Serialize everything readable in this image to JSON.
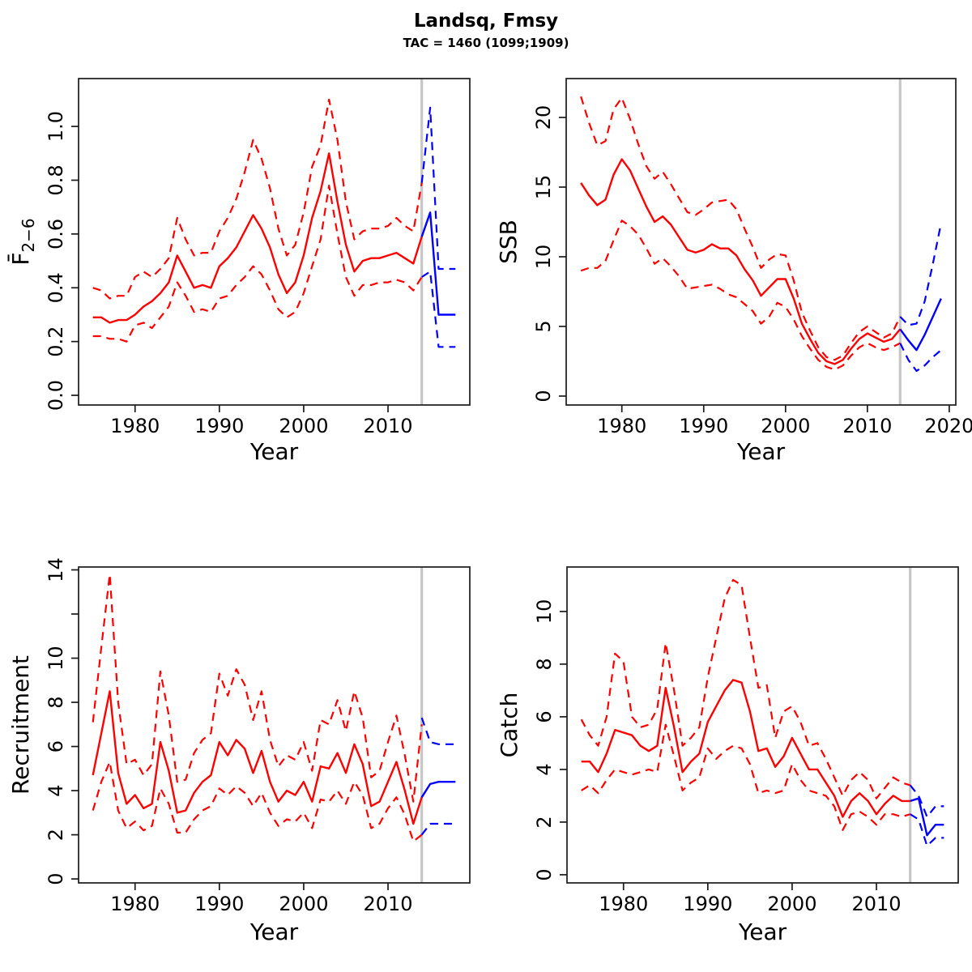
{
  "header": {
    "title": "Landsq, Fmsy",
    "subtitle": "TAC = 1460 (1099;1909)"
  },
  "colors": {
    "history": "#ff0000",
    "forecast": "#0000ff",
    "divider": "#c6c6c6",
    "frame": "#1a1a1a",
    "text": "#000000"
  },
  "divider_year": 2014,
  "years_history": [
    1975,
    1976,
    1977,
    1978,
    1979,
    1980,
    1981,
    1982,
    1983,
    1984,
    1985,
    1986,
    1987,
    1988,
    1989,
    1990,
    1991,
    1992,
    1993,
    1994,
    1995,
    1996,
    1997,
    1998,
    1999,
    2000,
    2001,
    2002,
    2003,
    2004,
    2005,
    2006,
    2007,
    2008,
    2009,
    2010,
    2011,
    2012,
    2013,
    2014
  ],
  "chart_data": [
    {
      "id": "fbar",
      "type": "line",
      "ylabel": "F̄",
      "ylabel_sub": "2−6",
      "xlabel": "Year",
      "xlim": [
        1973.3,
        2019.7
      ],
      "ylim": [
        -0.036,
        1.178
      ],
      "xticks": [
        1980,
        1990,
        2000,
        2010
      ],
      "yticks": [
        {
          "v": 0,
          "label": "0.0"
        },
        {
          "v": 0.2,
          "label": "0.2"
        },
        {
          "v": 0.4,
          "label": "0.4"
        },
        {
          "v": 0.6,
          "label": "0.6"
        },
        {
          "v": 0.8,
          "label": "0.8"
        },
        {
          "v": 1.0,
          "label": "1.0"
        }
      ],
      "history": {
        "median": [
          0.29,
          0.29,
          0.27,
          0.28,
          0.28,
          0.3,
          0.33,
          0.35,
          0.38,
          0.42,
          0.52,
          0.46,
          0.4,
          0.41,
          0.4,
          0.48,
          0.51,
          0.55,
          0.61,
          0.67,
          0.62,
          0.55,
          0.45,
          0.38,
          0.42,
          0.52,
          0.66,
          0.76,
          0.9,
          0.72,
          0.56,
          0.46,
          0.5,
          0.51,
          0.51,
          0.52,
          0.53,
          0.51,
          0.49,
          0.59
        ],
        "upper": [
          0.4,
          0.39,
          0.36,
          0.37,
          0.37,
          0.44,
          0.46,
          0.44,
          0.47,
          0.51,
          0.66,
          0.58,
          0.52,
          0.53,
          0.53,
          0.61,
          0.66,
          0.73,
          0.83,
          0.95,
          0.88,
          0.77,
          0.62,
          0.52,
          0.56,
          0.68,
          0.85,
          0.93,
          1.1,
          0.95,
          0.72,
          0.58,
          0.61,
          0.62,
          0.62,
          0.63,
          0.66,
          0.63,
          0.61,
          0.79
        ],
        "lower": [
          0.22,
          0.22,
          0.21,
          0.21,
          0.2,
          0.26,
          0.27,
          0.25,
          0.29,
          0.33,
          0.42,
          0.37,
          0.31,
          0.32,
          0.31,
          0.36,
          0.37,
          0.41,
          0.44,
          0.48,
          0.45,
          0.39,
          0.32,
          0.29,
          0.31,
          0.38,
          0.48,
          0.58,
          0.78,
          0.6,
          0.44,
          0.37,
          0.41,
          0.41,
          0.42,
          0.42,
          0.43,
          0.42,
          0.39,
          0.44
        ]
      },
      "forecast": {
        "years": [
          2014,
          2015,
          2016,
          2017,
          2018
        ],
        "median": [
          0.59,
          0.68,
          0.3,
          0.3,
          0.3
        ],
        "upper": [
          0.79,
          1.07,
          0.47,
          0.47,
          0.47
        ],
        "lower": [
          0.44,
          0.46,
          0.18,
          0.18,
          0.18
        ]
      }
    },
    {
      "id": "ssb",
      "type": "line",
      "ylabel": "SSB",
      "ylabel_sub": "",
      "xlabel": "Year",
      "xlim": [
        1973.2,
        2020.8
      ],
      "ylim": [
        -0.64,
        22.79
      ],
      "xticks": [
        1980,
        1990,
        2000,
        2010,
        2020
      ],
      "yticks": [
        {
          "v": 0,
          "label": "0"
        },
        {
          "v": 5,
          "label": "5"
        },
        {
          "v": 10,
          "label": "10"
        },
        {
          "v": 15,
          "label": "15"
        },
        {
          "v": 20,
          "label": "20"
        }
      ],
      "history": {
        "median": [
          15.3,
          14.4,
          13.7,
          14.1,
          15.9,
          17.0,
          16.2,
          14.9,
          13.6,
          12.5,
          12.9,
          12.3,
          11.4,
          10.5,
          10.3,
          10.5,
          10.9,
          10.6,
          10.6,
          10.1,
          9.1,
          8.3,
          7.2,
          7.8,
          8.4,
          8.4,
          7.0,
          5.2,
          4.1,
          3.1,
          2.5,
          2.3,
          2.6,
          3.4,
          4.1,
          4.5,
          4.2,
          3.9,
          4.1,
          4.8
        ],
        "upper": [
          21.5,
          19.6,
          18.0,
          18.3,
          20.6,
          21.4,
          19.9,
          18.1,
          16.5,
          15.6,
          16.1,
          15.2,
          14.2,
          13.2,
          13.0,
          13.4,
          13.9,
          14.0,
          14.1,
          13.4,
          12.0,
          10.7,
          9.2,
          9.8,
          10.2,
          10.1,
          8.3,
          6.0,
          4.7,
          3.5,
          2.8,
          2.6,
          2.9,
          3.8,
          4.6,
          5.0,
          4.6,
          4.2,
          4.5,
          5.7
        ],
        "lower": [
          9.0,
          9.2,
          9.2,
          9.7,
          11.2,
          12.6,
          12.2,
          11.6,
          10.6,
          9.5,
          9.9,
          9.3,
          8.6,
          7.7,
          7.8,
          7.9,
          8.0,
          7.7,
          7.3,
          7.1,
          6.6,
          6.1,
          5.2,
          5.7,
          6.7,
          6.4,
          5.5,
          4.3,
          3.4,
          2.6,
          2.1,
          1.9,
          2.2,
          2.9,
          3.5,
          3.8,
          3.5,
          3.3,
          3.5,
          3.8
        ]
      },
      "forecast": {
        "years": [
          2014,
          2015,
          2016,
          2017,
          2018,
          2019
        ],
        "median": [
          4.8,
          4.0,
          3.3,
          4.4,
          5.7,
          7.0
        ],
        "upper": [
          5.7,
          5.1,
          5.2,
          6.8,
          9.5,
          12.4
        ],
        "lower": [
          3.8,
          2.6,
          1.8,
          2.2,
          2.8,
          3.3
        ]
      }
    },
    {
      "id": "recruitment",
      "type": "line",
      "ylabel": "Recruitment",
      "ylabel_sub": "",
      "xlabel": "Year",
      "xlim": [
        1973.3,
        2019.7
      ],
      "ylim": [
        -0.18,
        14.13
      ],
      "xticks": [
        1980,
        1990,
        2000,
        2010
      ],
      "yticks": [
        {
          "v": 0,
          "label": "0"
        },
        {
          "v": 2,
          "label": "2"
        },
        {
          "v": 4,
          "label": "4"
        },
        {
          "v": 6,
          "label": "6"
        },
        {
          "v": 8,
          "label": "8"
        },
        {
          "v": 10,
          "label": "10"
        },
        {
          "v": 12,
          "label": ""
        },
        {
          "v": 14,
          "label": "14"
        }
      ],
      "history": {
        "median": [
          4.7,
          6.6,
          8.5,
          4.8,
          3.4,
          3.8,
          3.2,
          3.4,
          6.2,
          4.9,
          3.0,
          3.1,
          3.9,
          4.4,
          4.7,
          6.2,
          5.6,
          6.3,
          5.9,
          4.8,
          5.8,
          4.4,
          3.5,
          4.0,
          3.8,
          4.4,
          3.5,
          5.1,
          5.0,
          5.7,
          4.8,
          6.1,
          5.2,
          3.3,
          3.5,
          4.4,
          5.3,
          4.0,
          2.5,
          3.7
        ],
        "upper": [
          7.1,
          10.5,
          13.8,
          8.0,
          5.2,
          5.4,
          4.7,
          5.2,
          9.4,
          7.4,
          4.4,
          4.5,
          5.7,
          6.3,
          6.6,
          9.3,
          8.3,
          9.5,
          8.8,
          7.2,
          8.5,
          6.3,
          5.1,
          5.6,
          5.4,
          6.2,
          4.9,
          7.2,
          7.0,
          8.1,
          6.7,
          8.5,
          7.3,
          4.6,
          4.9,
          6.2,
          7.4,
          5.6,
          3.5,
          7.0
        ],
        "lower": [
          3.1,
          4.4,
          5.3,
          3.1,
          2.3,
          2.6,
          2.2,
          2.4,
          4.1,
          3.4,
          2.1,
          2.1,
          2.7,
          3.1,
          3.3,
          4.1,
          3.8,
          4.2,
          3.9,
          3.3,
          3.9,
          3.0,
          2.4,
          2.7,
          2.6,
          3.0,
          2.3,
          3.6,
          3.5,
          4.0,
          3.4,
          4.4,
          3.8,
          2.3,
          2.5,
          3.2,
          3.7,
          2.9,
          1.7,
          2.0
        ]
      },
      "forecast": {
        "years": [
          2014,
          2015,
          2016,
          2017,
          2018
        ],
        "median": [
          3.7,
          4.3,
          4.4,
          4.4,
          4.4
        ],
        "upper": [
          7.3,
          6.2,
          6.1,
          6.1,
          6.1
        ],
        "lower": [
          2.0,
          2.5,
          2.5,
          2.5,
          2.5
        ]
      }
    },
    {
      "id": "catch",
      "type": "line",
      "ylabel": "Catch",
      "ylabel_sub": "",
      "xlabel": "Year",
      "xlim": [
        1973.3,
        2019.7
      ],
      "ylim": [
        -0.31,
        11.69
      ],
      "xticks": [
        1980,
        1990,
        2000,
        2010
      ],
      "yticks": [
        {
          "v": 0,
          "label": "0"
        },
        {
          "v": 2,
          "label": "2"
        },
        {
          "v": 4,
          "label": "4"
        },
        {
          "v": 6,
          "label": "6"
        },
        {
          "v": 8,
          "label": "8"
        },
        {
          "v": 10,
          "label": "10"
        }
      ],
      "history": {
        "median": [
          4.3,
          4.3,
          3.9,
          4.6,
          5.5,
          5.4,
          5.3,
          4.9,
          4.7,
          4.9,
          7.1,
          5.6,
          3.9,
          4.3,
          4.6,
          5.8,
          6.4,
          7.0,
          7.4,
          7.3,
          6.2,
          4.7,
          4.8,
          4.1,
          4.5,
          5.2,
          4.6,
          4.0,
          4.0,
          3.5,
          3.0,
          2.2,
          2.8,
          3.1,
          2.8,
          2.3,
          2.7,
          3.0,
          2.8,
          2.8
        ],
        "upper": [
          5.9,
          5.3,
          4.9,
          6.0,
          8.4,
          8.1,
          6.0,
          5.6,
          5.7,
          6.3,
          8.8,
          7.0,
          4.9,
          5.2,
          5.6,
          7.5,
          9.0,
          10.5,
          11.2,
          11.0,
          9.0,
          7.1,
          7.2,
          5.2,
          6.2,
          6.4,
          5.8,
          4.9,
          5.0,
          4.4,
          3.7,
          3.0,
          3.6,
          3.9,
          3.6,
          2.9,
          3.3,
          3.7,
          3.5,
          3.4
        ],
        "lower": [
          3.2,
          3.4,
          3.1,
          3.6,
          4.0,
          3.9,
          3.8,
          3.9,
          4.0,
          3.9,
          5.7,
          4.5,
          3.2,
          3.5,
          3.7,
          4.8,
          4.4,
          4.7,
          4.9,
          4.8,
          4.2,
          3.1,
          3.2,
          3.1,
          3.2,
          4.2,
          3.6,
          3.2,
          3.1,
          3.0,
          2.6,
          1.7,
          2.3,
          2.4,
          2.2,
          1.9,
          2.3,
          2.3,
          2.2,
          2.3
        ]
      },
      "forecast": {
        "years": [
          2014,
          2015,
          2016,
          2017,
          2018
        ],
        "median": [
          2.8,
          2.9,
          1.5,
          1.9,
          1.9
        ],
        "upper": [
          3.4,
          3.0,
          2.2,
          2.6,
          2.6
        ],
        "lower": [
          2.3,
          2.1,
          1.1,
          1.4,
          1.4
        ]
      }
    }
  ]
}
